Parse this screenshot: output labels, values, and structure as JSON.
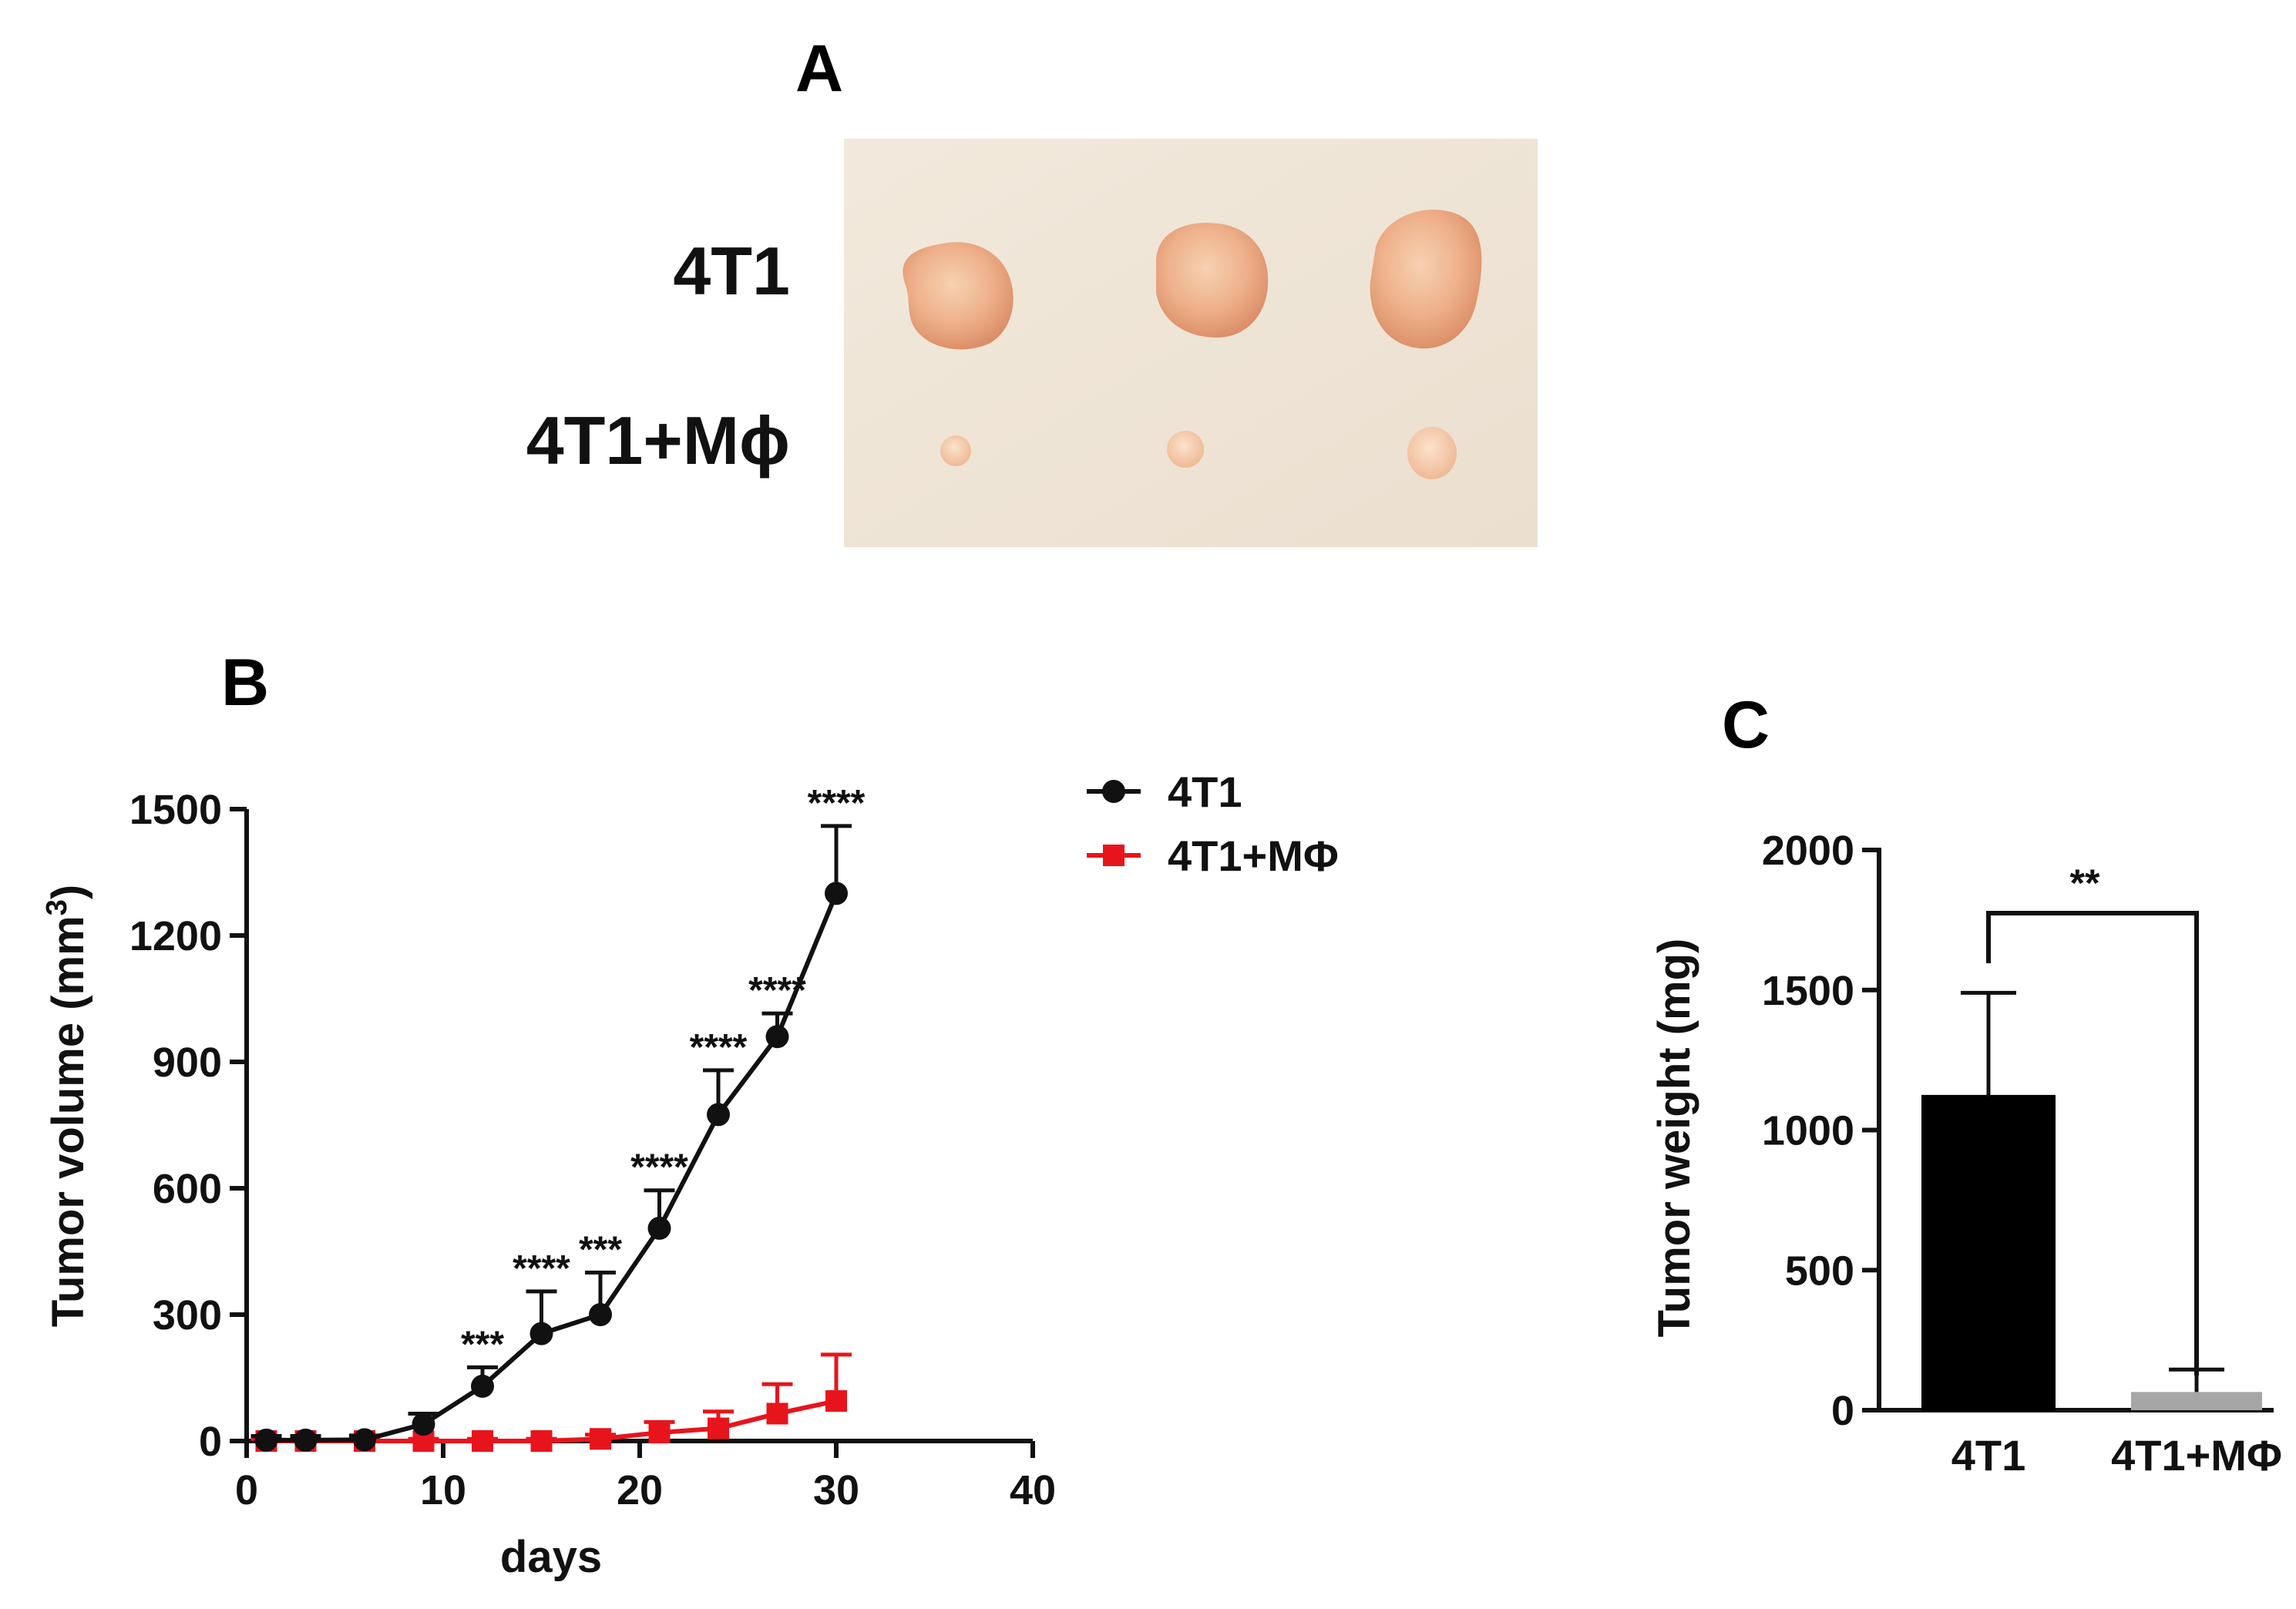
{
  "panel_a": {
    "letter": "A",
    "row_labels": [
      "4T1",
      "4T1+Mϕ"
    ]
  },
  "panel_b": {
    "letter": "B"
  },
  "panel_c": {
    "letter": "C"
  },
  "colors": {
    "black_series": "#111111",
    "red_series": "#e8141c",
    "bar_4t1": "#000000",
    "bar_mphi": "#a6a6a6",
    "photo_bg": "#efe4d6",
    "tumor_fill": "#eaa67f"
  },
  "chart_data": [
    {
      "type": "line",
      "id": "tumor-volume",
      "title": "",
      "xlabel": "days",
      "ylabel": "Tumor volume (mm",
      "ylabel_sup": "3",
      "ylabel_close": ")",
      "xlim": [
        0,
        40
      ],
      "ylim": [
        0,
        1500
      ],
      "xticks": [
        "0",
        "10",
        "20",
        "30",
        "40"
      ],
      "xtick_values": [
        0,
        10,
        20,
        30,
        40
      ],
      "yticks": [
        "0",
        "300",
        "600",
        "900",
        "1200",
        "1500"
      ],
      "ytick_values": [
        0,
        300,
        600,
        900,
        1200,
        1500
      ],
      "legend_position": "top-right",
      "series": [
        {
          "name": "4T1",
          "marker": "circle",
          "color": "#111111",
          "x": [
            1,
            3,
            6,
            9,
            12,
            15,
            18,
            21,
            24,
            27,
            30
          ],
          "y": [
            2,
            2,
            3,
            40,
            130,
            255,
            300,
            505,
            775,
            960,
            1300
          ],
          "err": [
            10,
            10,
            10,
            25,
            45,
            100,
            100,
            90,
            105,
            55,
            160
          ]
        },
        {
          "name": "4T1+MΦ",
          "marker": "square",
          "color": "#e8141c",
          "x": [
            1,
            3,
            6,
            9,
            12,
            15,
            18,
            21,
            24,
            27,
            30
          ],
          "y": [
            0,
            0,
            0,
            0,
            0,
            0,
            5,
            20,
            30,
            65,
            95
          ],
          "err": [
            5,
            5,
            5,
            5,
            5,
            5,
            10,
            25,
            40,
            70,
            110
          ]
        }
      ],
      "annotations": [
        {
          "x": 12,
          "text": "***"
        },
        {
          "x": 15,
          "text": "****"
        },
        {
          "x": 18,
          "text": "***"
        },
        {
          "x": 21,
          "text": "****"
        },
        {
          "x": 24,
          "text": "****"
        },
        {
          "x": 27,
          "text": "****"
        },
        {
          "x": 30,
          "text": "****"
        }
      ]
    },
    {
      "type": "bar",
      "id": "tumor-weight",
      "title": "",
      "xlabel": "",
      "ylabel": "Tumor weight (mg)",
      "categories": [
        "4T1",
        "4T1+MΦ"
      ],
      "values": [
        1120,
        65
      ],
      "err": [
        370,
        80
      ],
      "ylim": [
        0,
        2000
      ],
      "yticks": [
        "0",
        "500",
        "1000",
        "1500",
        "2000"
      ],
      "ytick_values": [
        0,
        500,
        1000,
        1500,
        2000
      ],
      "significance": "**"
    }
  ]
}
